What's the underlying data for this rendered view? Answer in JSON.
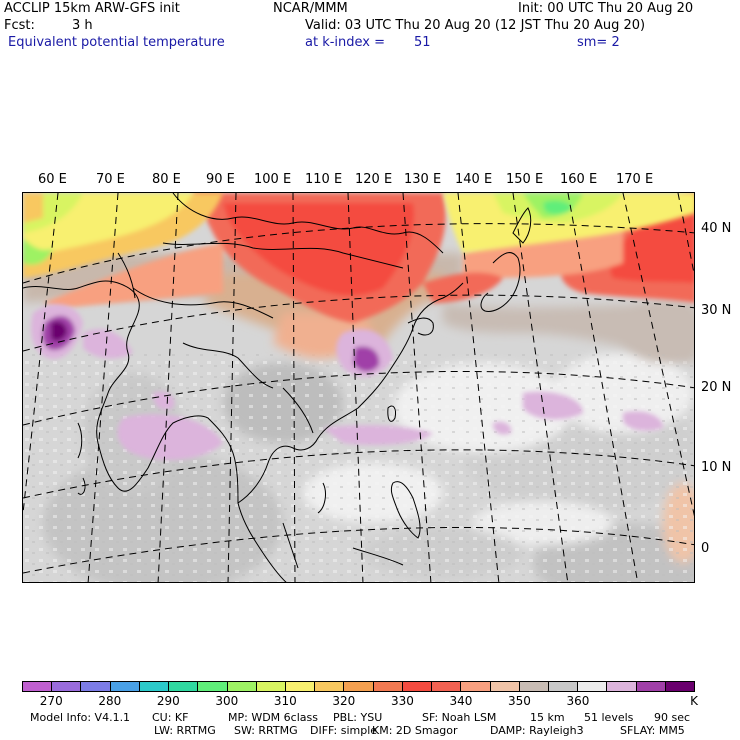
{
  "header": {
    "model_title": "ACCLIP 15km ARW-GFS init",
    "org": "NCAR/MMM",
    "init": "Init: 00 UTC Thu 20 Aug 20",
    "fcst_label": "Fcst:",
    "fcst_value": "3 h",
    "valid": "Valid: 03 UTC Thu 20 Aug 20 (12 JST Thu 20 Aug 20)",
    "field": "Equivalent potential temperature",
    "level": "at k-index =",
    "level_value": "51",
    "smoothing": "sm= 2"
  },
  "map": {
    "lon_labels": [
      "60 E",
      "70 E",
      "80 E",
      "90 E",
      "100 E",
      "110 E",
      "120 E",
      "130 E",
      "140 E",
      "150 E",
      "160 E",
      "170 E"
    ],
    "lat_labels": [
      "40 N",
      "30 N",
      "20 N",
      "10 N",
      "0"
    ]
  },
  "colorbar": {
    "colors": [
      "#c060d0",
      "#9a6cdc",
      "#7c7ce6",
      "#4aa0e6",
      "#2ccaca",
      "#30d8a0",
      "#60ee7a",
      "#9ef264",
      "#d8f462",
      "#f8f070",
      "#f8c860",
      "#f4a050",
      "#f27a52",
      "#f44c40",
      "#f26252",
      "#f8a080",
      "#f0c4a8",
      "#c8bcb4",
      "#c8c8c8",
      "#ececec",
      "#dcb4dc",
      "#a040a8",
      "#6a006e"
    ],
    "labels": [
      "270",
      "280",
      "290",
      "300",
      "310",
      "320",
      "330",
      "340",
      "350",
      "360"
    ],
    "unit": "K"
  },
  "footer": {
    "line1": [
      "Model Info: V4.1.1",
      "CU: KF",
      "MP: WDM 6class",
      "PBL: YSU",
      "SF: Noah LSM",
      "15 km",
      "51 levels",
      "90 sec"
    ],
    "line2": [
      "LW: RRTMG",
      "SW: RRTMG",
      "DIFF: simple",
      "KM: 2D Smagor",
      "DAMP: Rayleigh3",
      "SFLAY: MM5"
    ]
  }
}
